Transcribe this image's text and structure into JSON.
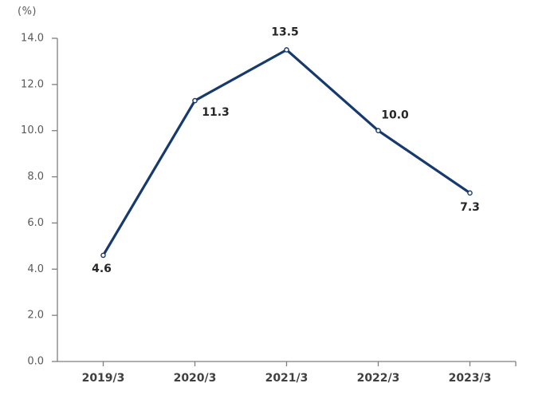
{
  "chart_data": {
    "type": "line",
    "title": "",
    "unit_label": "(%)",
    "categories": [
      "2019/3",
      "2020/3",
      "2021/3",
      "2022/3",
      "2023/3"
    ],
    "series": [
      {
        "name": "",
        "values": [
          4.6,
          11.3,
          13.5,
          10.0,
          7.3
        ],
        "data_labels": [
          "4.6",
          "11.3",
          "13.5",
          "10.0",
          "7.3"
        ],
        "label_offsets": [
          {
            "dx": -2,
            "dy": 17
          },
          {
            "dx": 26,
            "dy": 15
          },
          {
            "dx": -2,
            "dy": -22
          },
          {
            "dx": 21,
            "dy": -19
          },
          {
            "dx": 0,
            "dy": 18
          }
        ]
      }
    ],
    "ylim": [
      0,
      14
    ],
    "yticks": [
      0,
      2,
      4,
      6,
      8,
      10,
      12,
      14
    ],
    "ytick_labels": [
      "0.0",
      "2.0",
      "4.0",
      "6.0",
      "8.0",
      "10.0",
      "12.0",
      "14.0"
    ],
    "xlabel": "",
    "ylabel": "(%)",
    "grid": false,
    "legend_position": "none",
    "colors": {
      "line": "#16396E",
      "marker_fill": "#FFFFFF",
      "marker_stroke": "#16396E",
      "axis": "#7F7F7F",
      "ytick_label": "#595959",
      "xtick_label": "#404040",
      "data_label": "#262626",
      "background": "#FFFFFF"
    }
  }
}
